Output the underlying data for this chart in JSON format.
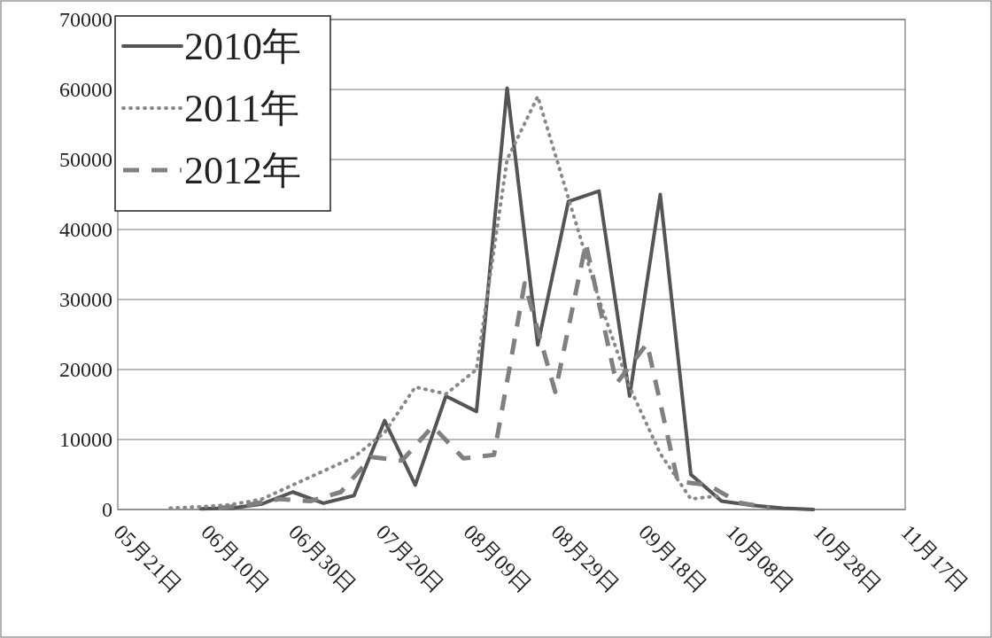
{
  "chart_data": {
    "type": "line",
    "xlim": [
      "--05-21",
      "--11-17"
    ],
    "xticks": [
      {
        "value": "--05-21",
        "label": "05月21日"
      },
      {
        "value": "--06-10",
        "label": "06月10日"
      },
      {
        "value": "--06-30",
        "label": "06月30日"
      },
      {
        "value": "--07-20",
        "label": "07月20日"
      },
      {
        "value": "--08-09",
        "label": "08月09日"
      },
      {
        "value": "--08-29",
        "label": "08月29日"
      },
      {
        "value": "--09-18",
        "label": "09月18日"
      },
      {
        "value": "--10-08",
        "label": "10月08日"
      },
      {
        "value": "--10-28",
        "label": "10月28日"
      },
      {
        "value": "--11-17",
        "label": "11月17日"
      }
    ],
    "ylim": [
      0,
      70000
    ],
    "yticks": [
      0,
      10000,
      20000,
      30000,
      40000,
      50000,
      60000,
      70000
    ],
    "grid": "y",
    "legend": "top left",
    "series": [
      {
        "name": "2010年",
        "color": "#555555",
        "line_style": "solid",
        "x": [
          "--06-09",
          "--06-16",
          "--06-23",
          "--06-30",
          "--07-07",
          "--07-14",
          "--07-21",
          "--07-28",
          "--08-04",
          "--08-11",
          "--08-18",
          "--08-25",
          "--09-01",
          "--09-08",
          "--09-15",
          "--09-22",
          "--09-29",
          "--10-06",
          "--10-13",
          "--10-20",
          "--10-27"
        ],
        "values": [
          100,
          200,
          800,
          2500,
          900,
          2000,
          12700,
          3500,
          16200,
          14000,
          60200,
          23500,
          44000,
          45500,
          16200,
          45000,
          5000,
          1200,
          600,
          200,
          0
        ]
      },
      {
        "name": "2011年",
        "color": "#888888",
        "line_style": "dotted",
        "x": [
          "--06-02",
          "--06-09",
          "--06-16",
          "--06-23",
          "--06-30",
          "--07-07",
          "--07-14",
          "--07-21",
          "--07-28",
          "--08-04",
          "--08-11",
          "--08-18",
          "--08-25",
          "--09-01",
          "--09-08",
          "--09-15",
          "--09-22",
          "--09-29",
          "--10-06"
        ],
        "values": [
          200,
          400,
          700,
          1500,
          3500,
          5500,
          7500,
          11000,
          17500,
          16500,
          20000,
          50000,
          59000,
          44500,
          30000,
          17500,
          8000,
          1500,
          2000
        ]
      },
      {
        "name": "2012年",
        "color": "#808080",
        "line_style": "dashed",
        "x": [
          "--06-13",
          "--06-20",
          "--06-27",
          "--07-04",
          "--07-11",
          "--07-18",
          "--07-25",
          "--08-01",
          "--08-08",
          "--08-15",
          "--08-22",
          "--08-29",
          "--09-05",
          "--09-12",
          "--09-19",
          "--09-26",
          "--10-03",
          "--10-10",
          "--10-17"
        ],
        "values": [
          200,
          700,
          1500,
          1200,
          2500,
          7500,
          7000,
          11900,
          7300,
          7800,
          32300,
          16800,
          38000,
          18000,
          23700,
          4000,
          3500,
          1000,
          200
        ]
      }
    ]
  }
}
